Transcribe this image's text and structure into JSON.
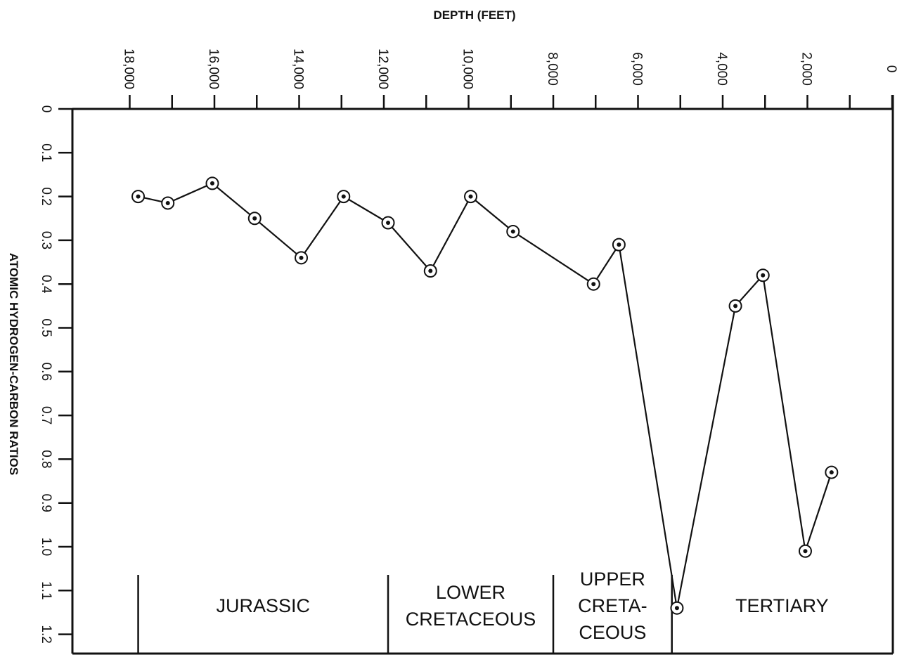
{
  "chart_data": {
    "type": "line",
    "xlabel": "DEPTH (FEET)",
    "ylabel": "ATOMIC HYDROGEN-CARBON RATIOS",
    "x_reversed": true,
    "y_reversed": true,
    "xlim": [
      0,
      18000
    ],
    "ylim": [
      0,
      1.2
    ],
    "x_ticks": [
      {
        "value": 18000,
        "label": "18,000"
      },
      {
        "value": 16000,
        "label": "16,000"
      },
      {
        "value": 14000,
        "label": "14,000"
      },
      {
        "value": 12000,
        "label": "12,000"
      },
      {
        "value": 10000,
        "label": "10,000"
      },
      {
        "value": 8000,
        "label": "8,000"
      },
      {
        "value": 6000,
        "label": "6,000"
      },
      {
        "value": 4000,
        "label": "4,000"
      },
      {
        "value": 2000,
        "label": "2,000"
      },
      {
        "value": 0,
        "label": "0"
      }
    ],
    "x_minor_ticks": [
      17000,
      15000,
      13000,
      11000,
      9000,
      7000,
      5000,
      3000,
      1000
    ],
    "y_ticks": [
      {
        "value": 0,
        "label": "0"
      },
      {
        "value": 0.1,
        "label": "0.1"
      },
      {
        "value": 0.2,
        "label": "0.2"
      },
      {
        "value": 0.3,
        "label": "0.3"
      },
      {
        "value": 0.4,
        "label": "0.4"
      },
      {
        "value": 0.5,
        "label": "0.5"
      },
      {
        "value": 0.6,
        "label": "0.6"
      },
      {
        "value": 0.7,
        "label": "0.7"
      },
      {
        "value": 0.8,
        "label": "0.8"
      },
      {
        "value": 0.9,
        "label": "0.9"
      },
      {
        "value": 1.0,
        "label": "1.0"
      },
      {
        "value": 1.1,
        "label": "1.1"
      },
      {
        "value": 1.2,
        "label": "1.2"
      }
    ],
    "series": [
      {
        "points": [
          {
            "x": 17800,
            "y": 0.2
          },
          {
            "x": 17100,
            "y": 0.215
          },
          {
            "x": 16050,
            "y": 0.17
          },
          {
            "x": 15050,
            "y": 0.25
          },
          {
            "x": 13950,
            "y": 0.34
          },
          {
            "x": 12950,
            "y": 0.2
          },
          {
            "x": 11900,
            "y": 0.26
          },
          {
            "x": 10900,
            "y": 0.37
          },
          {
            "x": 9950,
            "y": 0.2
          },
          {
            "x": 8950,
            "y": 0.28
          },
          {
            "x": 7050,
            "y": 0.4
          },
          {
            "x": 6450,
            "y": 0.31
          },
          {
            "x": 5080,
            "y": 1.14
          },
          {
            "x": 3700,
            "y": 0.45
          },
          {
            "x": 3050,
            "y": 0.38
          },
          {
            "x": 2050,
            "y": 1.01
          },
          {
            "x": 1430,
            "y": 0.83
          }
        ]
      }
    ],
    "periods": [
      {
        "label_lines": [
          "JURASSIC"
        ],
        "from": 17800,
        "to": 11900
      },
      {
        "label_lines": [
          "LOWER",
          "CRETACEOUS"
        ],
        "from": 11900,
        "to": 8000
      },
      {
        "label_lines": [
          "UPPER",
          "CRETA-",
          "CEOUS"
        ],
        "from": 8000,
        "to": 5200
      },
      {
        "label_lines": [
          "TERTIARY"
        ],
        "from": 5200,
        "to": 0
      }
    ],
    "period_boundaries": [
      17800,
      11900,
      8000,
      5200
    ]
  }
}
